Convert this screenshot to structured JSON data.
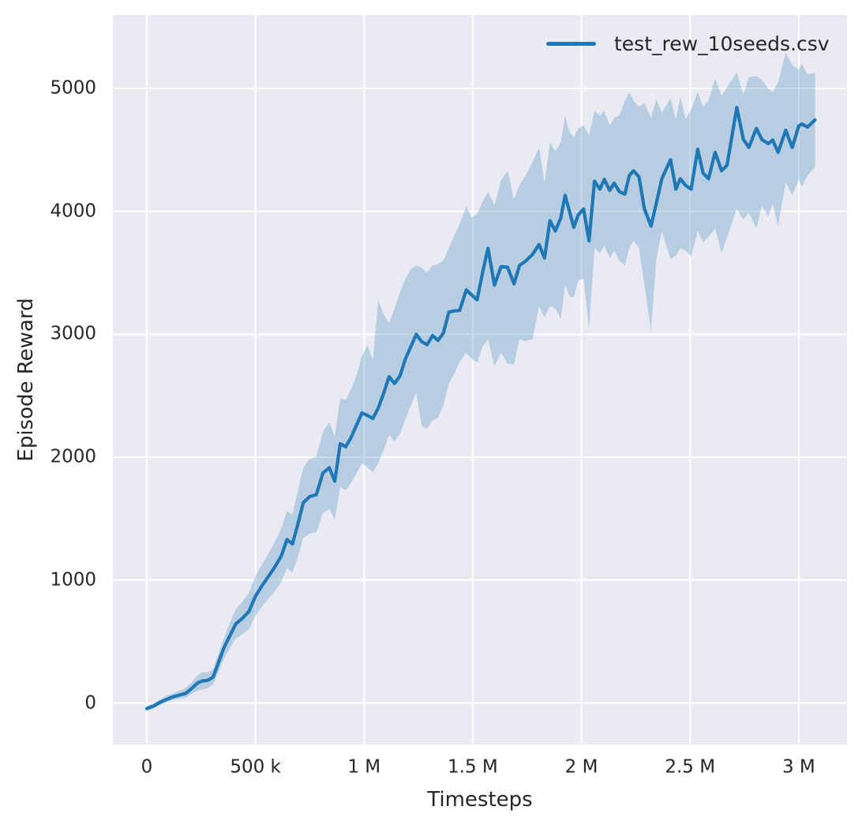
{
  "figure": {
    "background": "#ffffff"
  },
  "chart_data": {
    "type": "line",
    "title": "",
    "xlabel": "Timesteps",
    "ylabel": "Episode Reward",
    "x_unit": "thousands of timesteps",
    "xlim": [
      -156,
      3222
    ],
    "ylim": [
      -337,
      5597
    ],
    "grid": true,
    "legend_position": "upper right",
    "legend_frame": false,
    "colors": {
      "line": "#1f77b4",
      "band": "rgba(31,119,180,0.25)",
      "plot_background": "#eaeaf2",
      "grid": "#ffffff",
      "text": "#262626"
    },
    "x_ticks": [
      {
        "value": 0,
        "label": "0"
      },
      {
        "value": 500,
        "label": "500 k"
      },
      {
        "value": 1000,
        "label": "1 M"
      },
      {
        "value": 1500,
        "label": "1.5 M"
      },
      {
        "value": 2000,
        "label": "2 M"
      },
      {
        "value": 2500,
        "label": "2.5 M"
      },
      {
        "value": 3000,
        "label": "3 M"
      }
    ],
    "y_ticks": [
      {
        "value": 0,
        "label": "0"
      },
      {
        "value": 1000,
        "label": "1000"
      },
      {
        "value": 2000,
        "label": "2000"
      },
      {
        "value": 3000,
        "label": "3000"
      },
      {
        "value": 4000,
        "label": "4000"
      },
      {
        "value": 5000,
        "label": "5000"
      }
    ],
    "series": [
      {
        "name": "test_rew_10seeds.csv",
        "color": "#1f77b4",
        "band_color": "rgba(31,119,180,0.25)",
        "points_format": [
          "x_ksteps",
          "mean",
          "band_low",
          "band_high"
        ],
        "points": [
          [
            0,
            -45,
            -60,
            -25
          ],
          [
            30,
            -25,
            -45,
            -5
          ],
          [
            60,
            5,
            -15,
            30
          ],
          [
            90,
            30,
            5,
            60
          ],
          [
            120,
            50,
            25,
            80
          ],
          [
            150,
            65,
            35,
            100
          ],
          [
            180,
            80,
            45,
            125
          ],
          [
            210,
            125,
            80,
            175
          ],
          [
            235,
            165,
            100,
            230
          ],
          [
            255,
            180,
            110,
            250
          ],
          [
            280,
            185,
            120,
            250
          ],
          [
            305,
            210,
            150,
            275
          ],
          [
            330,
            330,
            255,
            405
          ],
          [
            355,
            450,
            360,
            530
          ],
          [
            380,
            540,
            440,
            645
          ],
          [
            410,
            645,
            525,
            765
          ],
          [
            440,
            690,
            560,
            825
          ],
          [
            470,
            745,
            600,
            895
          ],
          [
            500,
            870,
            710,
            1035
          ],
          [
            530,
            955,
            785,
            1125
          ],
          [
            560,
            1030,
            850,
            1215
          ],
          [
            590,
            1110,
            910,
            1315
          ],
          [
            620,
            1200,
            990,
            1425
          ],
          [
            645,
            1330,
            1100,
            1560
          ],
          [
            670,
            1295,
            1060,
            1535
          ],
          [
            695,
            1455,
            1190,
            1725
          ],
          [
            720,
            1630,
            1340,
            1915
          ],
          [
            750,
            1680,
            1380,
            1985
          ],
          [
            780,
            1695,
            1390,
            2005
          ],
          [
            810,
            1870,
            1545,
            2205
          ],
          [
            840,
            1915,
            1580,
            2285
          ],
          [
            865,
            1805,
            1490,
            2165
          ],
          [
            890,
            2110,
            1760,
            2480
          ],
          [
            915,
            2085,
            1730,
            2465
          ],
          [
            940,
            2160,
            1790,
            2555
          ],
          [
            965,
            2260,
            1870,
            2665
          ],
          [
            990,
            2360,
            1950,
            2825
          ],
          [
            1015,
            2340,
            1920,
            2910
          ],
          [
            1040,
            2315,
            1880,
            2790
          ],
          [
            1065,
            2400,
            1950,
            3280
          ],
          [
            1090,
            2520,
            2060,
            3160
          ],
          [
            1115,
            2655,
            2180,
            3090
          ],
          [
            1140,
            2600,
            2130,
            3210
          ],
          [
            1165,
            2660,
            2190,
            3340
          ],
          [
            1190,
            2800,
            2310,
            3450
          ],
          [
            1215,
            2900,
            2420,
            3530
          ],
          [
            1240,
            3000,
            2530,
            3560
          ],
          [
            1265,
            2940,
            2250,
            3540
          ],
          [
            1290,
            2915,
            2235,
            3500
          ],
          [
            1315,
            2990,
            2300,
            3560
          ],
          [
            1340,
            2950,
            2320,
            3570
          ],
          [
            1365,
            3010,
            2420,
            3600
          ],
          [
            1390,
            3180,
            2600,
            3700
          ],
          [
            1415,
            3190,
            2680,
            3800
          ],
          [
            1440,
            3195,
            2780,
            3900
          ],
          [
            1470,
            3360,
            2850,
            4040
          ],
          [
            1495,
            3320,
            2800,
            3950
          ],
          [
            1520,
            3280,
            2770,
            3980
          ],
          [
            1545,
            3500,
            2900,
            4080
          ],
          [
            1570,
            3700,
            2960,
            4160
          ],
          [
            1600,
            3400,
            2740,
            4050
          ],
          [
            1630,
            3550,
            2850,
            4250
          ],
          [
            1660,
            3545,
            2760,
            4330
          ],
          [
            1690,
            3410,
            2755,
            4100
          ],
          [
            1715,
            3560,
            2960,
            4215
          ],
          [
            1740,
            3590,
            2945,
            4280
          ],
          [
            1775,
            3650,
            2960,
            4400
          ],
          [
            1805,
            3730,
            3230,
            4520
          ],
          [
            1830,
            3620,
            3135,
            4230
          ],
          [
            1855,
            3925,
            3230,
            4560
          ],
          [
            1880,
            3840,
            3210,
            4490
          ],
          [
            1905,
            3945,
            3125,
            4560
          ],
          [
            1925,
            4130,
            3400,
            4775
          ],
          [
            1945,
            4000,
            3310,
            4650
          ],
          [
            1965,
            3870,
            3300,
            4600
          ],
          [
            1985,
            3970,
            3440,
            4670
          ],
          [
            2010,
            4020,
            3450,
            4700
          ],
          [
            2035,
            3760,
            3045,
            4620
          ],
          [
            2060,
            4245,
            3700,
            4815
          ],
          [
            2085,
            4180,
            3660,
            4780
          ],
          [
            2105,
            4260,
            3720,
            4815
          ],
          [
            2130,
            4170,
            3620,
            4700
          ],
          [
            2150,
            4230,
            3680,
            4760
          ],
          [
            2175,
            4160,
            3600,
            4780
          ],
          [
            2200,
            4140,
            3560,
            4900
          ],
          [
            2220,
            4290,
            3700,
            4970
          ],
          [
            2240,
            4330,
            3760,
            4900
          ],
          [
            2265,
            4280,
            3700,
            4850
          ],
          [
            2290,
            4020,
            3400,
            4880
          ],
          [
            2320,
            3880,
            3025,
            4760
          ],
          [
            2345,
            4070,
            3620,
            4910
          ],
          [
            2370,
            4265,
            3840,
            4800
          ],
          [
            2410,
            4420,
            3610,
            4920
          ],
          [
            2435,
            4180,
            3640,
            4750
          ],
          [
            2455,
            4265,
            3700,
            4930
          ],
          [
            2480,
            4210,
            3680,
            4750
          ],
          [
            2505,
            4180,
            3630,
            4830
          ],
          [
            2535,
            4505,
            3840,
            4970
          ],
          [
            2560,
            4310,
            3750,
            4850
          ],
          [
            2585,
            4265,
            3790,
            4900
          ],
          [
            2615,
            4480,
            3860,
            5080
          ],
          [
            2645,
            4330,
            3660,
            4940
          ],
          [
            2670,
            4375,
            3790,
            5010
          ],
          [
            2715,
            4845,
            4020,
            5130
          ],
          [
            2745,
            4585,
            3930,
            4950
          ],
          [
            2770,
            4520,
            3990,
            5090
          ],
          [
            2805,
            4675,
            3860,
            5100
          ],
          [
            2830,
            4585,
            4040,
            5070
          ],
          [
            2860,
            4550,
            3960,
            5000
          ],
          [
            2880,
            4580,
            4060,
            4970
          ],
          [
            2905,
            4480,
            3880,
            5050
          ],
          [
            2940,
            4660,
            4240,
            5290
          ],
          [
            2970,
            4520,
            4130,
            5190
          ],
          [
            3000,
            4695,
            4260,
            5150
          ],
          [
            3015,
            4710,
            4200,
            5200
          ],
          [
            3040,
            4685,
            4290,
            5110
          ],
          [
            3075,
            4745,
            4360,
            5130
          ]
        ]
      }
    ]
  }
}
